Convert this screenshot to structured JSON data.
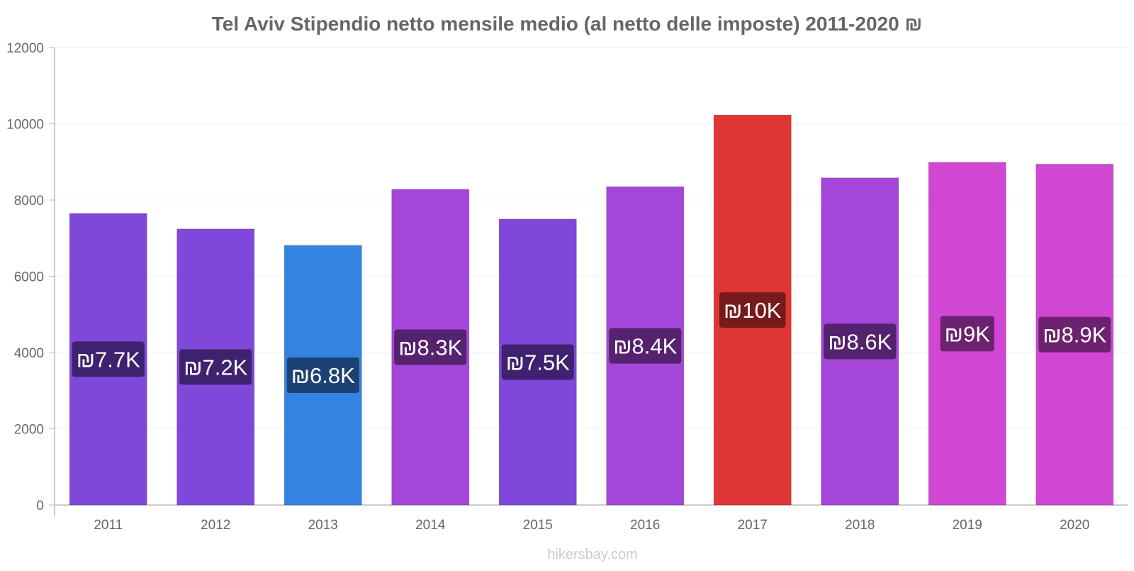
{
  "chart_data": {
    "type": "bar",
    "title": "Tel Aviv Stipendio netto mensile medio (al netto delle imposte) 2011-2020 ₪",
    "xlabel": "",
    "ylabel": "",
    "categories": [
      "2011",
      "2012",
      "2013",
      "2014",
      "2015",
      "2016",
      "2017",
      "2018",
      "2019",
      "2020"
    ],
    "values": [
      7650,
      7240,
      6810,
      8280,
      7500,
      8350,
      10230,
      8580,
      8990,
      8940
    ],
    "data_labels": [
      "₪7.7K",
      "₪7.2K",
      "₪6.8K",
      "₪8.3K",
      "₪7.5K",
      "₪8.4K",
      "₪10K",
      "₪8.6K",
      "₪9K",
      "₪8.9K"
    ],
    "bar_colors": [
      "#8048da",
      "#8048da",
      "#3583e0",
      "#a446da",
      "#8048da",
      "#a446da",
      "#e03535",
      "#a446da",
      "#d047d4",
      "#d047d4"
    ],
    "label_bg_colors": [
      "#3a1f66",
      "#3a1f66",
      "#1a3d6b",
      "#4e1f66",
      "#3a1f66",
      "#4e1f66",
      "#6e1818",
      "#4e1f66",
      "#631f65",
      "#631f65"
    ],
    "ylim": [
      0,
      12000
    ],
    "yticks": [
      "0",
      "2000",
      "4000",
      "6000",
      "8000",
      "10000",
      "12000"
    ],
    "grid": true,
    "legend": "none"
  },
  "footer": {
    "watermark": "hikersbay.com"
  }
}
